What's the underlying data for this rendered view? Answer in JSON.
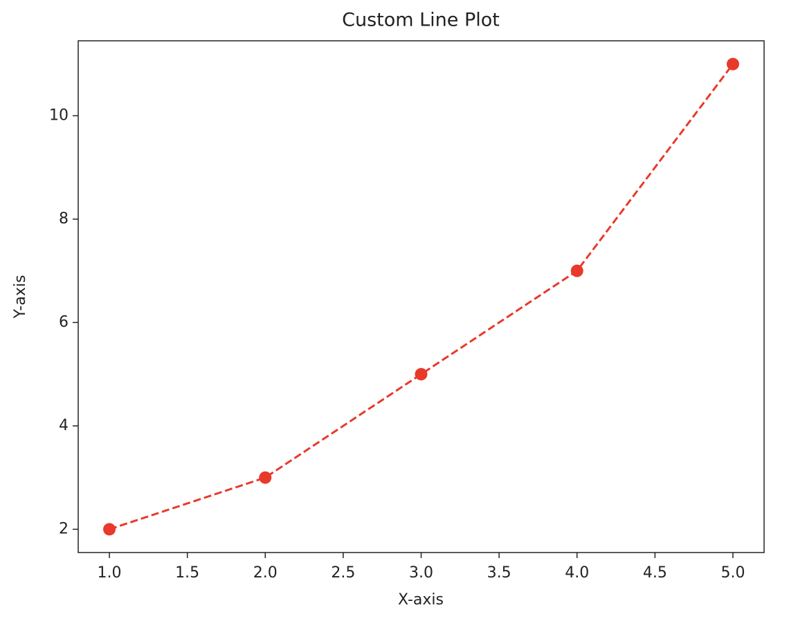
{
  "chart_data": {
    "type": "line",
    "title": "Custom Line Plot",
    "x_label": "X-axis",
    "y_label": "Y-axis",
    "x": [
      1,
      2,
      3,
      4,
      5
    ],
    "series": [
      {
        "name": "",
        "color": "#e8392b",
        "values": [
          2,
          3,
          5,
          7,
          11
        ]
      }
    ],
    "xlim": [
      0.8,
      5.2
    ],
    "ylim": [
      1.55,
      11.45
    ],
    "xticks": [
      {
        "value": 1,
        "label": "1.0"
      },
      {
        "value": 1.5,
        "label": "1.5"
      },
      {
        "value": 2,
        "label": "2.0"
      },
      {
        "value": 2.5,
        "label": "2.5"
      },
      {
        "value": 3,
        "label": "3.0"
      },
      {
        "value": 3.5,
        "label": "3.5"
      },
      {
        "value": 4,
        "label": "4.0"
      },
      {
        "value": 4.5,
        "label": "4.5"
      },
      {
        "value": 5,
        "label": "5.0"
      }
    ],
    "yticks": [
      2,
      4,
      6,
      8,
      10
    ],
    "grid": false,
    "line_style": "dashed",
    "marker": "circle"
  }
}
